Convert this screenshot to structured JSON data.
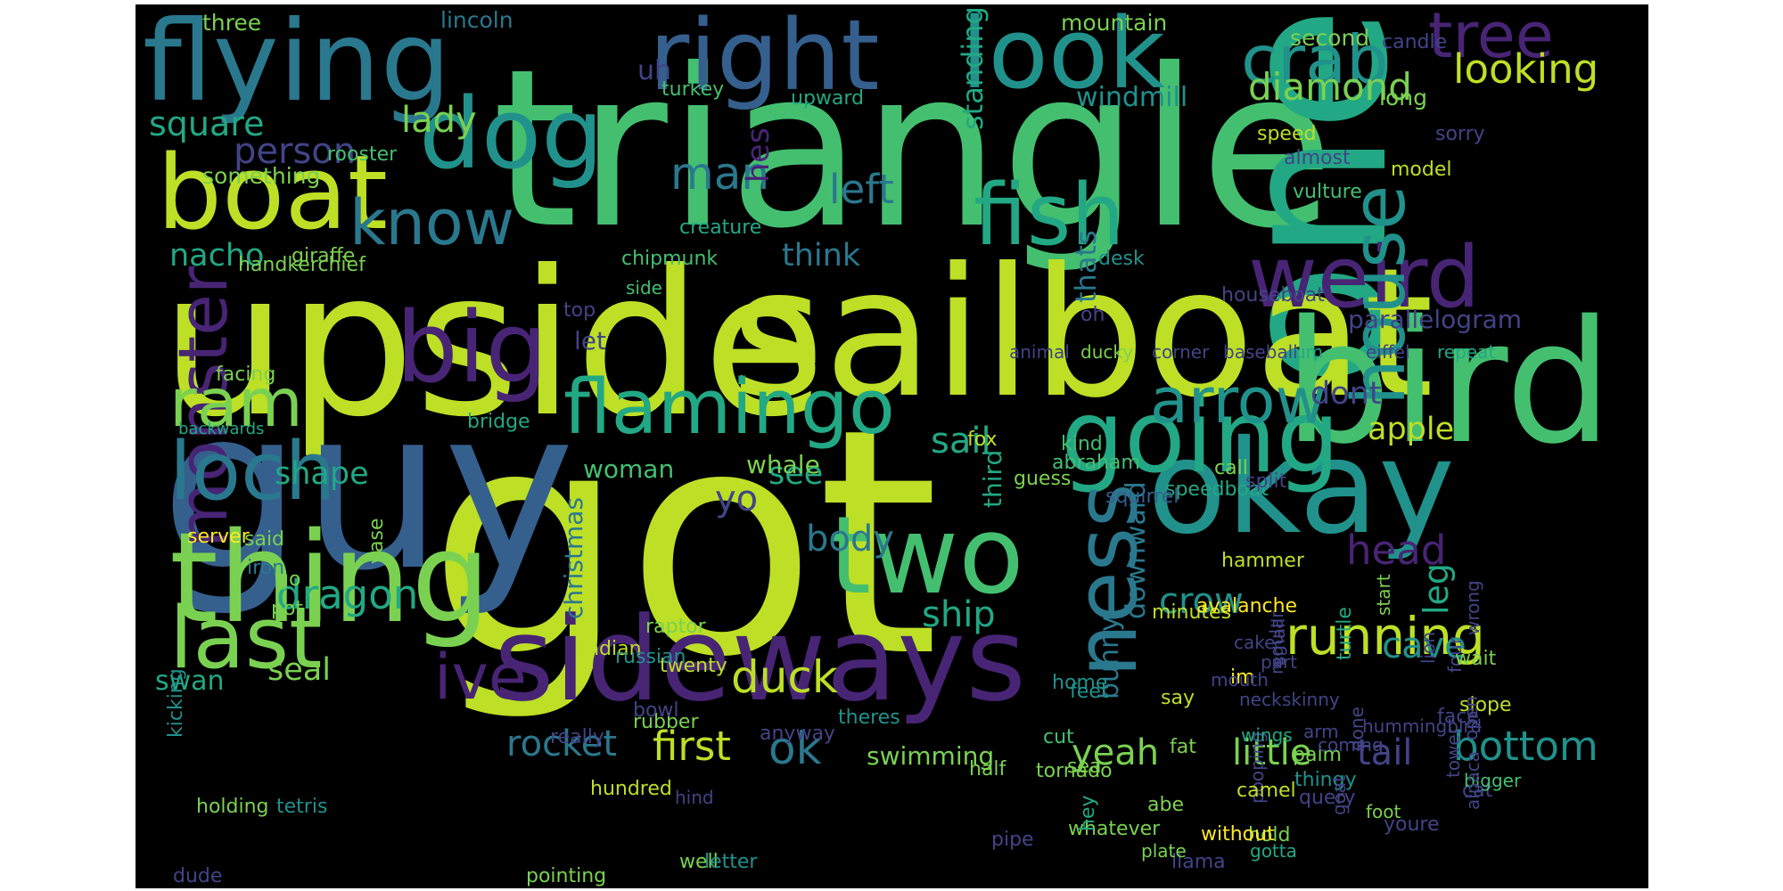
{
  "palette": {
    "yellow_green": "#bddf26",
    "light_green": "#7ad151",
    "green": "#44bf70",
    "teal_green": "#22a884",
    "teal": "#21918c",
    "teal_blue": "#2a788e",
    "blue": "#355f8d",
    "indigo": "#414487",
    "purple": "#482475",
    "bright_yellow": "#fde725"
  },
  "words": [
    {
      "text": "got",
      "color": "#bddf26"
    },
    {
      "text": "triangle",
      "color": "#44bf70"
    },
    {
      "text": "upside",
      "color": "#bddf26"
    },
    {
      "text": "one",
      "color": "#22a884"
    },
    {
      "text": "guy",
      "color": "#355f8d"
    },
    {
      "text": "sailboat",
      "color": "#bddf26"
    },
    {
      "text": "bird",
      "color": "#44bf70"
    },
    {
      "text": "flying",
      "color": "#2a788e"
    },
    {
      "text": "sideways",
      "color": "#482475"
    },
    {
      "text": "okay",
      "color": "#21918c"
    },
    {
      "text": "thing",
      "color": "#7ad151"
    },
    {
      "text": "going",
      "color": "#22a884"
    },
    {
      "text": "boat",
      "color": "#bddf26"
    },
    {
      "text": "look",
      "color": "#21918c"
    },
    {
      "text": "right",
      "color": "#355f8d"
    },
    {
      "text": "two",
      "color": "#44bf70"
    },
    {
      "text": "big",
      "color": "#482475"
    },
    {
      "text": "dog",
      "color": "#21918c"
    },
    {
      "text": "flamingo",
      "color": "#22a884"
    },
    {
      "text": "fish",
      "color": "#22a884"
    },
    {
      "text": "weird",
      "color": "#482475"
    },
    {
      "text": "house",
      "color": "#21918c"
    },
    {
      "text": "last",
      "color": "#7ad151"
    },
    {
      "text": "ness",
      "color": "#2a788e"
    },
    {
      "text": "monster",
      "color": "#482475"
    },
    {
      "text": "loch",
      "color": "#2a788e"
    },
    {
      "text": "arrow",
      "color": "#21918c"
    },
    {
      "text": "tree",
      "color": "#482475"
    },
    {
      "text": "crab",
      "color": "#21918c"
    },
    {
      "text": "know",
      "color": "#2a788e"
    },
    {
      "text": "ram",
      "color": "#7ad151"
    },
    {
      "text": "ive",
      "color": "#482475"
    },
    {
      "text": "running",
      "color": "#bddf26"
    },
    {
      "text": "dragon",
      "color": "#22a884"
    },
    {
      "text": "duck",
      "color": "#bddf26"
    },
    {
      "text": "first",
      "color": "#bddf26"
    },
    {
      "text": "rocket",
      "color": "#2a788e"
    },
    {
      "text": "ok",
      "color": "#2a788e"
    },
    {
      "text": "bottom",
      "color": "#21918c"
    },
    {
      "text": "tail",
      "color": "#414487"
    },
    {
      "text": "little",
      "color": "#7ad151"
    },
    {
      "text": "yeah",
      "color": "#7ad151"
    },
    {
      "text": "head",
      "color": "#482475"
    },
    {
      "text": "leg",
      "color": "#22a884"
    },
    {
      "text": "crow",
      "color": "#21918c"
    },
    {
      "text": "cave",
      "color": "#21918c"
    },
    {
      "text": "ship",
      "color": "#22a884"
    },
    {
      "text": "body",
      "color": "#2a788e"
    },
    {
      "text": "diamond",
      "color": "#7ad151"
    },
    {
      "text": "looking",
      "color": "#bddf26"
    },
    {
      "text": "man",
      "color": "#2a788e"
    },
    {
      "text": "left",
      "color": "#2a788e"
    },
    {
      "text": "lady",
      "color": "#7ad151"
    },
    {
      "text": "square",
      "color": "#22a884"
    },
    {
      "text": "person",
      "color": "#414487"
    },
    {
      "text": "nacho",
      "color": "#22a884"
    },
    {
      "text": "shape",
      "color": "#22a884"
    },
    {
      "text": "seal",
      "color": "#7ad151"
    },
    {
      "text": "sail",
      "color": "#22a884"
    },
    {
      "text": "see",
      "color": "#22a884"
    },
    {
      "text": "yo",
      "color": "#414487"
    },
    {
      "text": "dont",
      "color": "#414487"
    },
    {
      "text": "apple",
      "color": "#bddf26"
    },
    {
      "text": "thats",
      "color": "#2a788e"
    },
    {
      "text": "think",
      "color": "#2a788e"
    },
    {
      "text": "hes",
      "color": "#482475"
    },
    {
      "text": "standing",
      "color": "#22a884"
    },
    {
      "text": "windmill",
      "color": "#21918c"
    },
    {
      "text": "swan",
      "color": "#22a884"
    },
    {
      "text": "christmas",
      "color": "#2a788e"
    },
    {
      "text": "third",
      "color": "#22a884"
    },
    {
      "text": "downward",
      "color": "#2a788e"
    },
    {
      "text": "bunny",
      "color": "#2a788e"
    },
    {
      "text": "uh",
      "color": "#414487"
    },
    {
      "text": "let",
      "color": "#414487"
    },
    {
      "text": "woman",
      "color": "#44bf70"
    },
    {
      "text": "parallelogram",
      "color": "#414487"
    },
    {
      "text": "whale",
      "color": "#7ad151"
    },
    {
      "text": "swimming",
      "color": "#7ad151"
    },
    {
      "text": "something",
      "color": "#7ad151"
    },
    {
      "text": "three",
      "color": "#7ad151"
    },
    {
      "text": "lincoln",
      "color": "#2a788e"
    },
    {
      "text": "mountain",
      "color": "#7ad151"
    },
    {
      "text": "second",
      "color": "#7ad151"
    },
    {
      "text": "long",
      "color": "#7ad151"
    },
    {
      "text": "candle",
      "color": "#414487"
    },
    {
      "text": "turkey",
      "color": "#44bf70"
    },
    {
      "text": "upward",
      "color": "#22a884"
    },
    {
      "text": "rooster",
      "color": "#44bf70"
    },
    {
      "text": "sorry",
      "color": "#414487"
    },
    {
      "text": "speed",
      "color": "#bddf26"
    },
    {
      "text": "almost",
      "color": "#414487"
    },
    {
      "text": "model",
      "color": "#bddf26"
    },
    {
      "text": "vulture",
      "color": "#44bf70"
    },
    {
      "text": "creature",
      "color": "#22a884"
    },
    {
      "text": "chipmunk",
      "color": "#44bf70"
    },
    {
      "text": "desk",
      "color": "#21918c"
    },
    {
      "text": "giraffe",
      "color": "#7ad151"
    },
    {
      "text": "handkerchief",
      "color": "#7ad151"
    },
    {
      "text": "side",
      "color": "#44bf70"
    },
    {
      "text": "top",
      "color": "#414487"
    },
    {
      "text": "oh",
      "color": "#414487"
    },
    {
      "text": "houseboat",
      "color": "#414487"
    },
    {
      "text": "fox",
      "color": "#bddf26"
    },
    {
      "text": "kind",
      "color": "#44bf70"
    },
    {
      "text": "abraham",
      "color": "#44bf70"
    },
    {
      "text": "guess",
      "color": "#7ad151"
    },
    {
      "text": "call",
      "color": "#7ad151"
    },
    {
      "text": "speedboat",
      "color": "#22a884"
    },
    {
      "text": "squirrel",
      "color": "#355f8d"
    },
    {
      "text": "facing",
      "color": "#7ad151"
    },
    {
      "text": "bridge",
      "color": "#22a884"
    },
    {
      "text": "backwards",
      "color": "#22a884"
    },
    {
      "text": "server",
      "color": "#fde725"
    },
    {
      "text": "said",
      "color": "#7ad151"
    },
    {
      "text": "iron",
      "color": "#2a788e"
    },
    {
      "text": "go",
      "color": "#7ad151"
    },
    {
      "text": "split",
      "color": "#414487"
    },
    {
      "text": "vase",
      "color": "#7ad151"
    },
    {
      "text": "pot",
      "color": "#7ad151"
    },
    {
      "text": "raptor",
      "color": "#7ad151"
    },
    {
      "text": "twenty",
      "color": "#bddf26"
    },
    {
      "text": "indian",
      "color": "#bddf26"
    },
    {
      "text": "russian",
      "color": "#21918c"
    },
    {
      "text": "hammer",
      "color": "#bddf26"
    },
    {
      "text": "minutes",
      "color": "#bddf26"
    },
    {
      "text": "avalanche",
      "color": "#fde725"
    },
    {
      "text": "feet",
      "color": "#21918c"
    },
    {
      "text": "home",
      "color": "#21918c"
    },
    {
      "text": "theres",
      "color": "#21918c"
    },
    {
      "text": "rubber",
      "color": "#7ad151"
    },
    {
      "text": "really",
      "color": "#414487"
    },
    {
      "text": "bowl",
      "color": "#414487"
    },
    {
      "text": "half",
      "color": "#7ad151"
    },
    {
      "text": "tornado",
      "color": "#7ad151"
    },
    {
      "text": "fat",
      "color": "#7ad151"
    },
    {
      "text": "palm",
      "color": "#7ad151"
    },
    {
      "text": "kicking",
      "color": "#21918c"
    },
    {
      "text": "holding",
      "color": "#7ad151"
    },
    {
      "text": "tetris",
      "color": "#21918c"
    },
    {
      "text": "pointing",
      "color": "#7ad151"
    },
    {
      "text": "dude",
      "color": "#414487"
    },
    {
      "text": "whatever",
      "color": "#7ad151"
    },
    {
      "text": "pipe",
      "color": "#414487"
    },
    {
      "text": "hundred",
      "color": "#bddf26"
    },
    {
      "text": "well",
      "color": "#7ad151"
    },
    {
      "text": "letter",
      "color": "#21918c"
    },
    {
      "text": "hold",
      "color": "#7ad151"
    },
    {
      "text": "llama",
      "color": "#414487"
    },
    {
      "text": "plate",
      "color": "#7ad151"
    },
    {
      "text": "cat",
      "color": "#414487"
    },
    {
      "text": "bigger",
      "color": "#44bf70"
    },
    {
      "text": "coming",
      "color": "#414487"
    },
    {
      "text": "turtle",
      "color": "#22a884"
    },
    {
      "text": "slope",
      "color": "#bddf26"
    },
    {
      "text": "face",
      "color": "#414487"
    },
    {
      "text": "say",
      "color": "#bddf26"
    },
    {
      "text": "im",
      "color": "#fde725"
    },
    {
      "text": "cut",
      "color": "#44bf70"
    },
    {
      "text": "sea",
      "color": "#7ad151"
    },
    {
      "text": "thingy",
      "color": "#21918c"
    },
    {
      "text": "hey",
      "color": "#22a884"
    },
    {
      "text": "pooping",
      "color": "#414487"
    },
    {
      "text": "regular",
      "color": "#414487"
    },
    {
      "text": "start",
      "color": "#7ad151"
    },
    {
      "text": "wings",
      "color": "#22a884"
    },
    {
      "text": "gotta",
      "color": "#22a884"
    },
    {
      "text": "without",
      "color": "#fde725"
    },
    {
      "text": "camel",
      "color": "#bddf26"
    },
    {
      "text": "query",
      "color": "#414487"
    },
    {
      "text": "anyway",
      "color": "#414487"
    },
    {
      "text": "hind",
      "color": "#414487"
    },
    {
      "text": "abe",
      "color": "#7ad151"
    },
    {
      "text": "arm",
      "color": "#414487"
    },
    {
      "text": "foot",
      "color": "#7ad151"
    },
    {
      "text": "youre",
      "color": "#414487"
    },
    {
      "text": "open",
      "color": "#414487"
    },
    {
      "text": "neck",
      "color": "#414487"
    },
    {
      "text": "goat",
      "color": "#414487"
    },
    {
      "text": "done",
      "color": "#414487"
    },
    {
      "text": "four",
      "color": "#414487"
    },
    {
      "text": "wrong",
      "color": "#414487"
    },
    {
      "text": "hummingbird",
      "color": "#414487"
    },
    {
      "text": "alpaca",
      "color": "#414487"
    },
    {
      "text": "skinny",
      "color": "#414487"
    },
    {
      "text": "mouth",
      "color": "#414487"
    },
    {
      "text": "tower",
      "color": "#414487"
    },
    {
      "text": "wait",
      "color": "#7ad151"
    },
    {
      "text": "cake",
      "color": "#414487"
    },
    {
      "text": "part",
      "color": "#414487"
    },
    {
      "text": "lion",
      "color": "#414487"
    },
    {
      "text": "small",
      "color": "#414487"
    },
    {
      "text": "animal",
      "color": "#414487"
    },
    {
      "text": "ducky",
      "color": "#7ad151"
    },
    {
      "text": "corner",
      "color": "#414487"
    },
    {
      "text": "baseball",
      "color": "#414487"
    },
    {
      "text": "um",
      "color": "#22a884"
    },
    {
      "text": "eiffel",
      "color": "#414487"
    },
    {
      "text": "repeat",
      "color": "#22a884"
    }
  ]
}
